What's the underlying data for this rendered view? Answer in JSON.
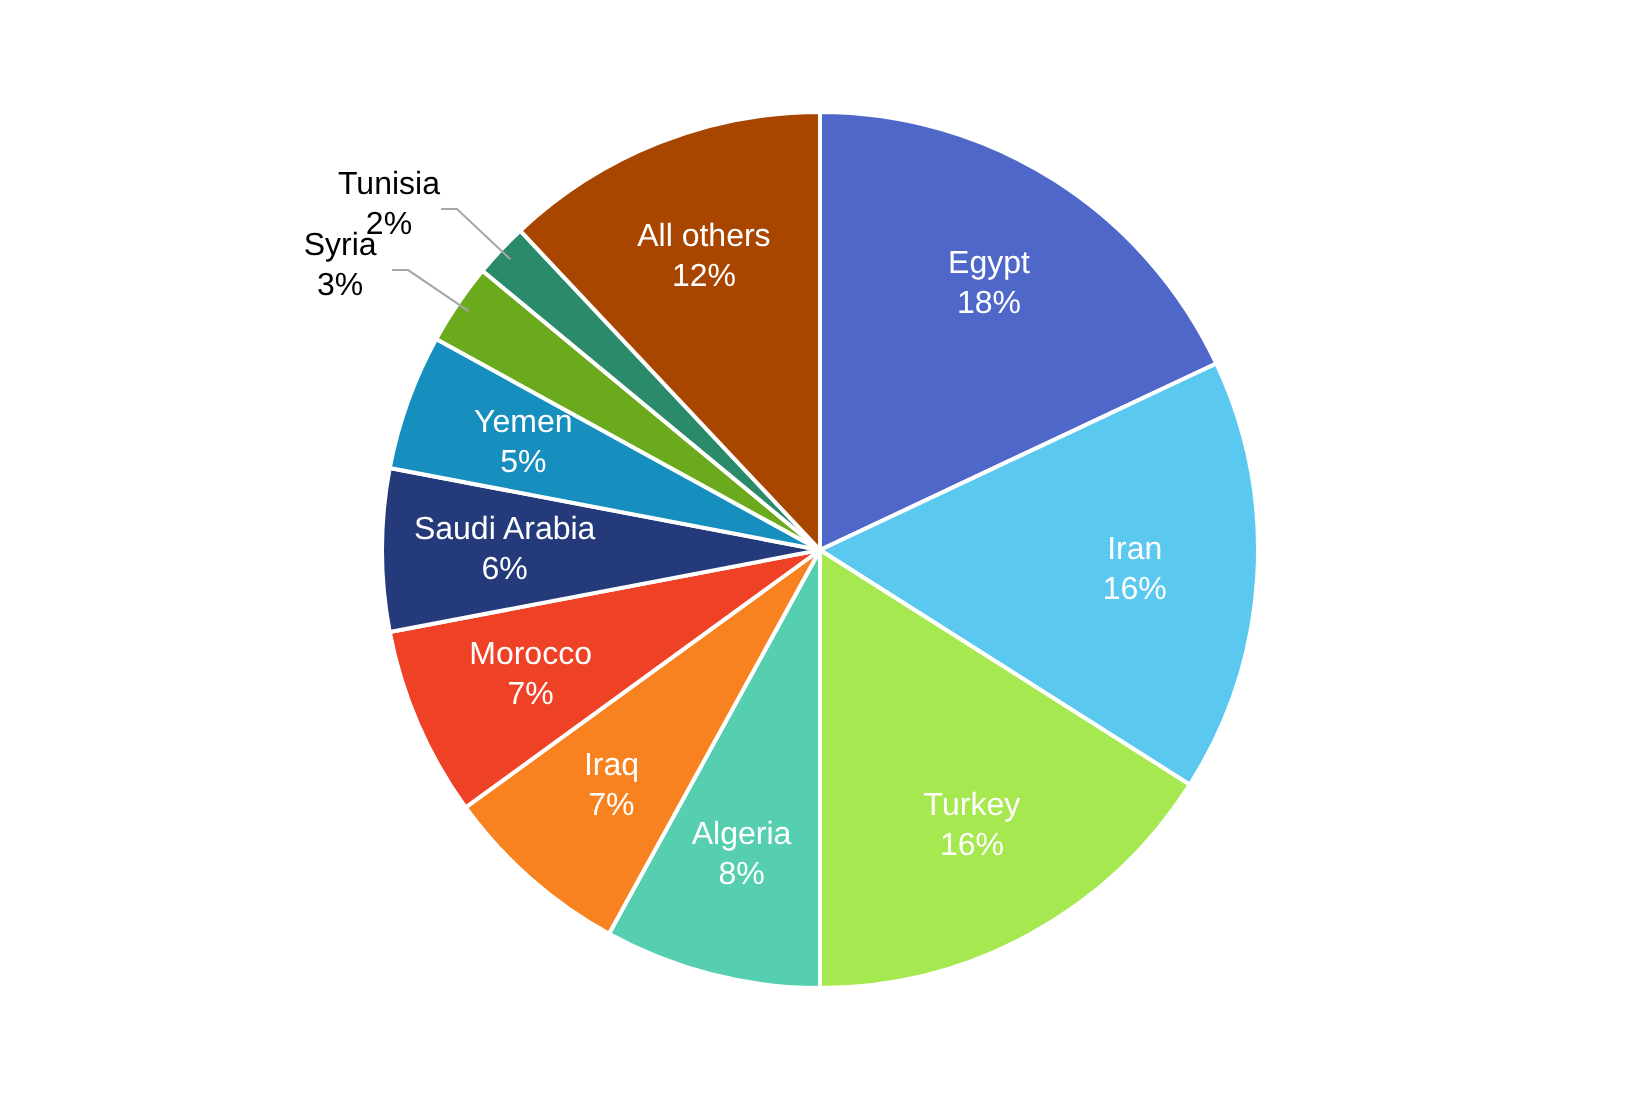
{
  "chart_data": {
    "type": "pie",
    "categories": [
      "Egypt",
      "Iran",
      "Turkey",
      "Algeria",
      "Iraq",
      "Morocco",
      "Saudi Arabia",
      "Yemen",
      "Syria",
      "Tunisia",
      "All others"
    ],
    "values": [
      18,
      16,
      16,
      8,
      7,
      7,
      6,
      5,
      3,
      2,
      12
    ],
    "colors": [
      "#4f67c9",
      "#5bc8f0",
      "#a6e84f",
      "#55cfb0",
      "#f7821f",
      "#ee4126",
      "#253a7a",
      "#168fbf",
      "#6aaa1c",
      "#2a8a6a",
      "#a84600"
    ],
    "value_labels": [
      "18%",
      "16%",
      "16%",
      "8%",
      "7%",
      "7%",
      "6%",
      "5%",
      "3%",
      "2%",
      "12%"
    ],
    "legend": false
  }
}
